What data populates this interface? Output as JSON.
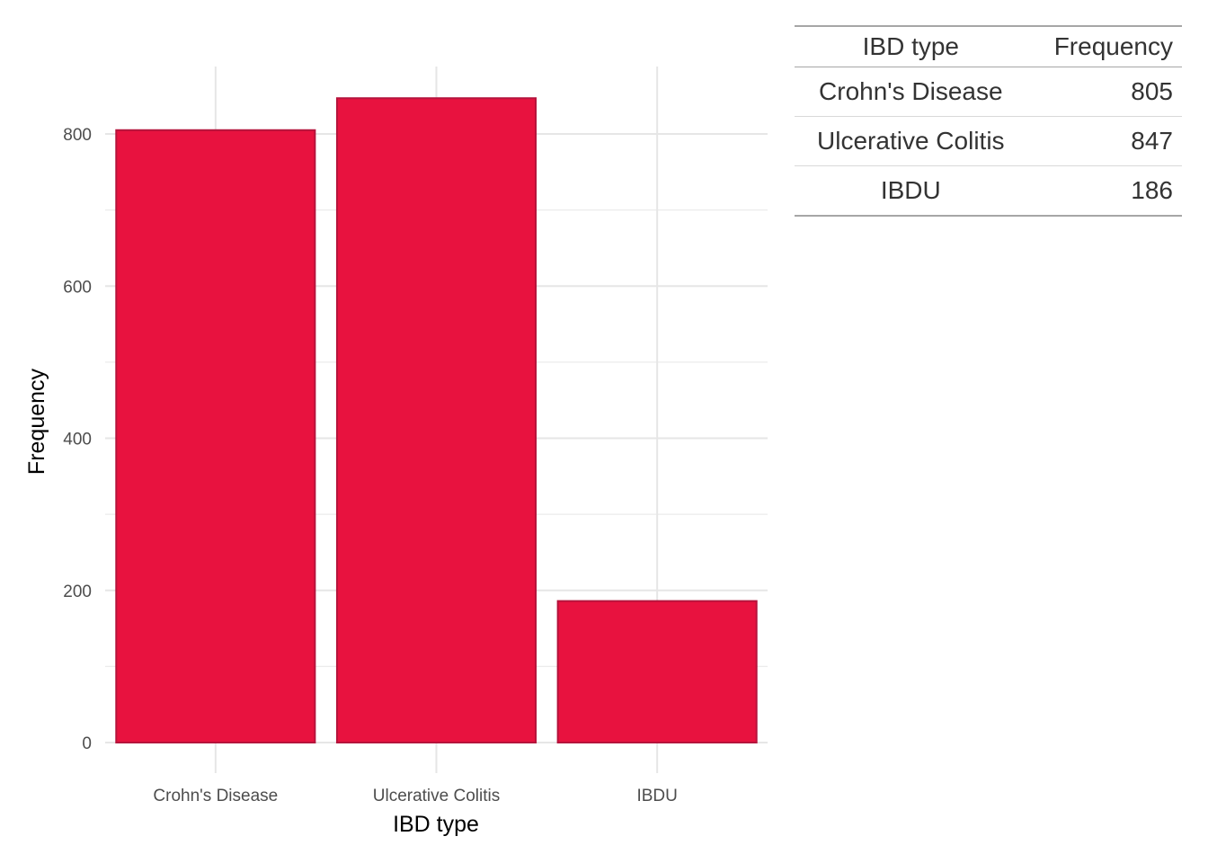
{
  "chart_data": {
    "type": "bar",
    "categories": [
      "Crohn's Disease",
      "Ulcerative Colitis",
      "IBDU"
    ],
    "values": [
      805,
      847,
      186
    ],
    "xlabel": "IBD type",
    "ylabel": "Frequency",
    "ylim": [
      0,
      890
    ],
    "yticks": [
      0,
      200,
      400,
      600,
      800
    ],
    "grid": true,
    "bar_color": "#e8123f",
    "bar_border_color": "#b5143c"
  },
  "table": {
    "headers": [
      "IBD type",
      "Frequency"
    ],
    "rows": [
      {
        "type": "Crohn's Disease",
        "frequency": "805"
      },
      {
        "type": "Ulcerative Colitis",
        "frequency": "847"
      },
      {
        "type": "IBDU",
        "frequency": "186"
      }
    ]
  }
}
